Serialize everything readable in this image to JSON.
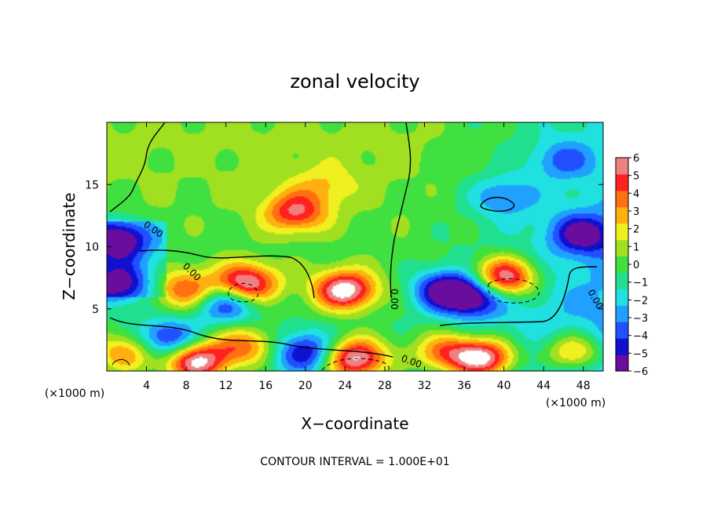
{
  "chart_data": {
    "type": "heatmap",
    "title": "zonal velocity",
    "xlabel": "X−coordinate",
    "ylabel": "Z−coordinate",
    "x_unit_label": "(×1000 m)",
    "x_unit_label_secondary": "(×1000 m)",
    "xlim": [
      0,
      50
    ],
    "ylim": [
      0,
      20
    ],
    "x_ticks": [
      4,
      8,
      12,
      16,
      20,
      24,
      28,
      32,
      36,
      40,
      44,
      48
    ],
    "y_ticks": [
      5,
      10,
      15
    ],
    "colorbar": {
      "min": -6,
      "max": 6,
      "ticks": [
        6,
        5,
        4,
        3,
        2,
        1,
        0,
        -1,
        -2,
        -3,
        -4,
        -5,
        -6
      ],
      "colors": [
        "#6a0d9e",
        "#1010d0",
        "#2050ff",
        "#20a0ff",
        "#20e0e0",
        "#20e090",
        "#40e040",
        "#a0e020",
        "#f0f020",
        "#ffb010",
        "#ff7010",
        "#ff2020",
        "#f08080"
      ]
    },
    "contour_label": "0.00",
    "contour_interval_text": "CONTOUR INTERVAL = 1.000E+01",
    "features": [
      {
        "x": 19,
        "z": 12.8,
        "value": 5
      },
      {
        "x": 24,
        "z": 6.5,
        "value": 7
      },
      {
        "x": 14,
        "z": 7,
        "value": 7
      },
      {
        "x": 8,
        "z": 6.5,
        "value": 4.5
      },
      {
        "x": 12,
        "z": 5.5,
        "value": -5
      },
      {
        "x": 1,
        "z": 7,
        "value": -5
      },
      {
        "x": 1,
        "z": 10.5,
        "value": -6
      },
      {
        "x": 34,
        "z": 6.5,
        "value": -5
      },
      {
        "x": 40,
        "z": 7.5,
        "value": 7
      },
      {
        "x": 37,
        "z": 6,
        "value": -5.5
      },
      {
        "x": 48,
        "z": 11,
        "value": -5
      },
      {
        "x": 40,
        "z": 14,
        "value": -3
      },
      {
        "x": 46,
        "z": 17,
        "value": -3
      },
      {
        "x": 38,
        "z": 1,
        "value": 7
      },
      {
        "x": 34,
        "z": 1.5,
        "value": 4
      },
      {
        "x": 25,
        "z": 1,
        "value": 7
      },
      {
        "x": 9,
        "z": 0.8,
        "value": 7
      },
      {
        "x": 2,
        "z": 1.5,
        "value": 4
      },
      {
        "x": 14,
        "z": 2,
        "value": 4
      },
      {
        "x": 47,
        "z": 1.5,
        "value": 4
      },
      {
        "x": 6,
        "z": 2.5,
        "value": -5
      },
      {
        "x": 20,
        "z": 1.5,
        "value": -5
      },
      {
        "x": 22,
        "z": 15,
        "value": 2
      },
      {
        "x": 8,
        "z": 17,
        "value": 0
      }
    ]
  }
}
